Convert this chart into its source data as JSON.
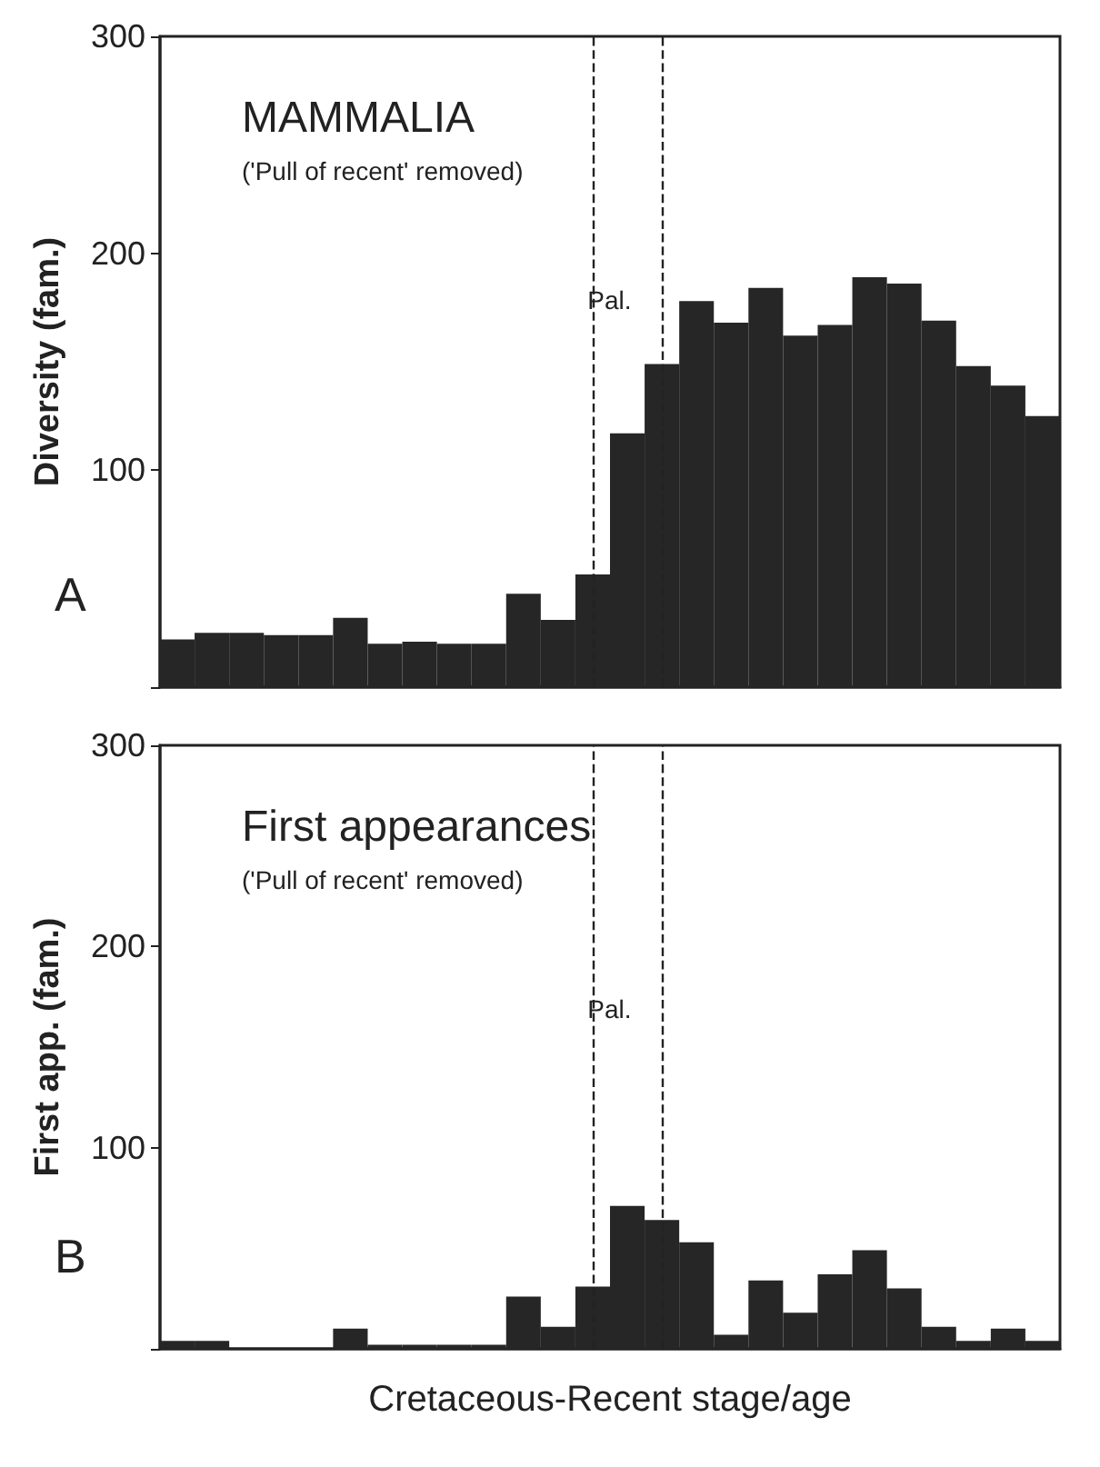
{
  "chart_data": [
    {
      "type": "bar",
      "title": "MAMMALIA",
      "subtitle": "('Pull of recent' removed)",
      "ylabel": "Diversity (fam.)",
      "annotations": [
        "A",
        "Pal."
      ],
      "categories": [
        null,
        null,
        null,
        null,
        null,
        null,
        null,
        null,
        null,
        null,
        null,
        null,
        null,
        null,
        null,
        null,
        null,
        null,
        null,
        null,
        null,
        null,
        null,
        null,
        null,
        null
      ],
      "values": [
        22,
        25,
        25,
        24,
        24,
        32,
        20,
        21,
        20,
        20,
        43,
        31,
        52,
        117,
        149,
        178,
        168,
        184,
        162,
        167,
        189,
        186,
        169,
        148,
        139,
        125
      ],
      "color": "#262626",
      "ylim": [
        0,
        300
      ],
      "yticks": [
        {
          "value": 0,
          "label": null
        },
        100,
        200,
        300
      ],
      "tick_labels": "y",
      "grid": false
    },
    {
      "type": "bar",
      "title": "First appearances",
      "subtitle": "('Pull of recent' removed)",
      "ylabel": "First app. (fam.)",
      "xlabel": "Cretaceous-Recent stage/age",
      "annotations": [
        "B",
        "Pal."
      ],
      "categories": [
        null,
        null,
        null,
        null,
        null,
        null,
        null,
        null,
        null,
        null,
        null,
        null,
        null,
        null,
        null,
        null,
        null,
        null,
        null,
        null,
        null,
        null,
        null,
        null,
        null,
        null
      ],
      "values": [
        4,
        4,
        null,
        null,
        null,
        10,
        2,
        2,
        2,
        2,
        26,
        11,
        31,
        71,
        64,
        53,
        7,
        34,
        18,
        37,
        49,
        30,
        11,
        4,
        10,
        4
      ],
      "color": "#262626",
      "ylim": [
        0,
        300
      ],
      "yticks": [
        {
          "value": 0,
          "label": null
        },
        100,
        200,
        300
      ],
      "tick_labels": "y",
      "grid": false
    }
  ]
}
